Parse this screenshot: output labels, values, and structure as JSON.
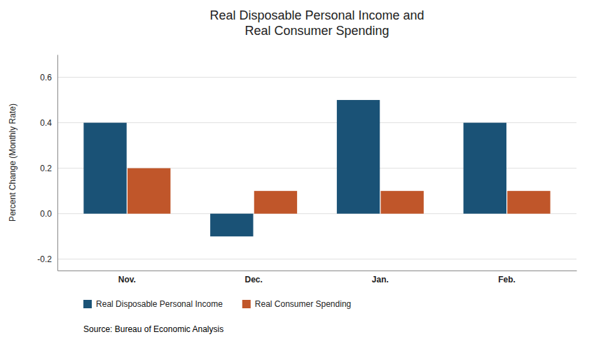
{
  "chart_data": {
    "type": "bar",
    "title": "Real Disposable Personal Income and\nReal Consumer Spending",
    "ylabel": "Percent Change (Monthly Rate)",
    "annotations": [
      "Source:  Bureau of Economic Analysis"
    ],
    "categories": [
      "Nov.",
      "Dec.",
      "Jan.",
      "Feb."
    ],
    "series": [
      {
        "name": "Real Disposable Personal Income",
        "color": "#1a5276",
        "values": [
          0.4,
          -0.1,
          0.5,
          0.4
        ]
      },
      {
        "name": "Real Consumer Spending",
        "color": "#c0562a",
        "values": [
          0.2,
          0.1,
          0.1,
          0.1
        ]
      }
    ],
    "ylim": [
      -0.25,
      0.7
    ],
    "yticks": [
      -0.2,
      {
        "value": 0.0,
        "label": "0.0"
      },
      0.2,
      0.4,
      0.6
    ],
    "grid": true,
    "legend": "bottom"
  }
}
